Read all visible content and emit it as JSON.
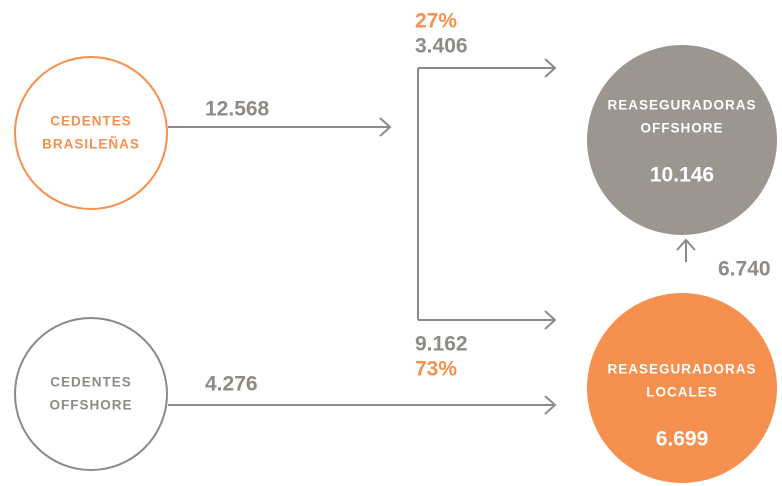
{
  "nodes": [
    {
      "lines": [
        "CEDENTES",
        "BRASILEÑAS"
      ]
    },
    {
      "lines": [
        "CEDENTES",
        "OFFSHORE"
      ]
    },
    {
      "lines": [
        "REASEGURADORAS",
        "OFFSHORE"
      ],
      "value": "10.146"
    },
    {
      "lines": [
        "REASEGURADORAS",
        "LOCALES"
      ],
      "value": "6.699"
    }
  ],
  "flows": [
    {
      "label": "12.568"
    },
    {
      "label": "3.406",
      "share": "27%"
    },
    {
      "label": "9.162",
      "share": "73%"
    },
    {
      "label": "4.276"
    },
    {
      "label": "6.740"
    }
  ]
}
